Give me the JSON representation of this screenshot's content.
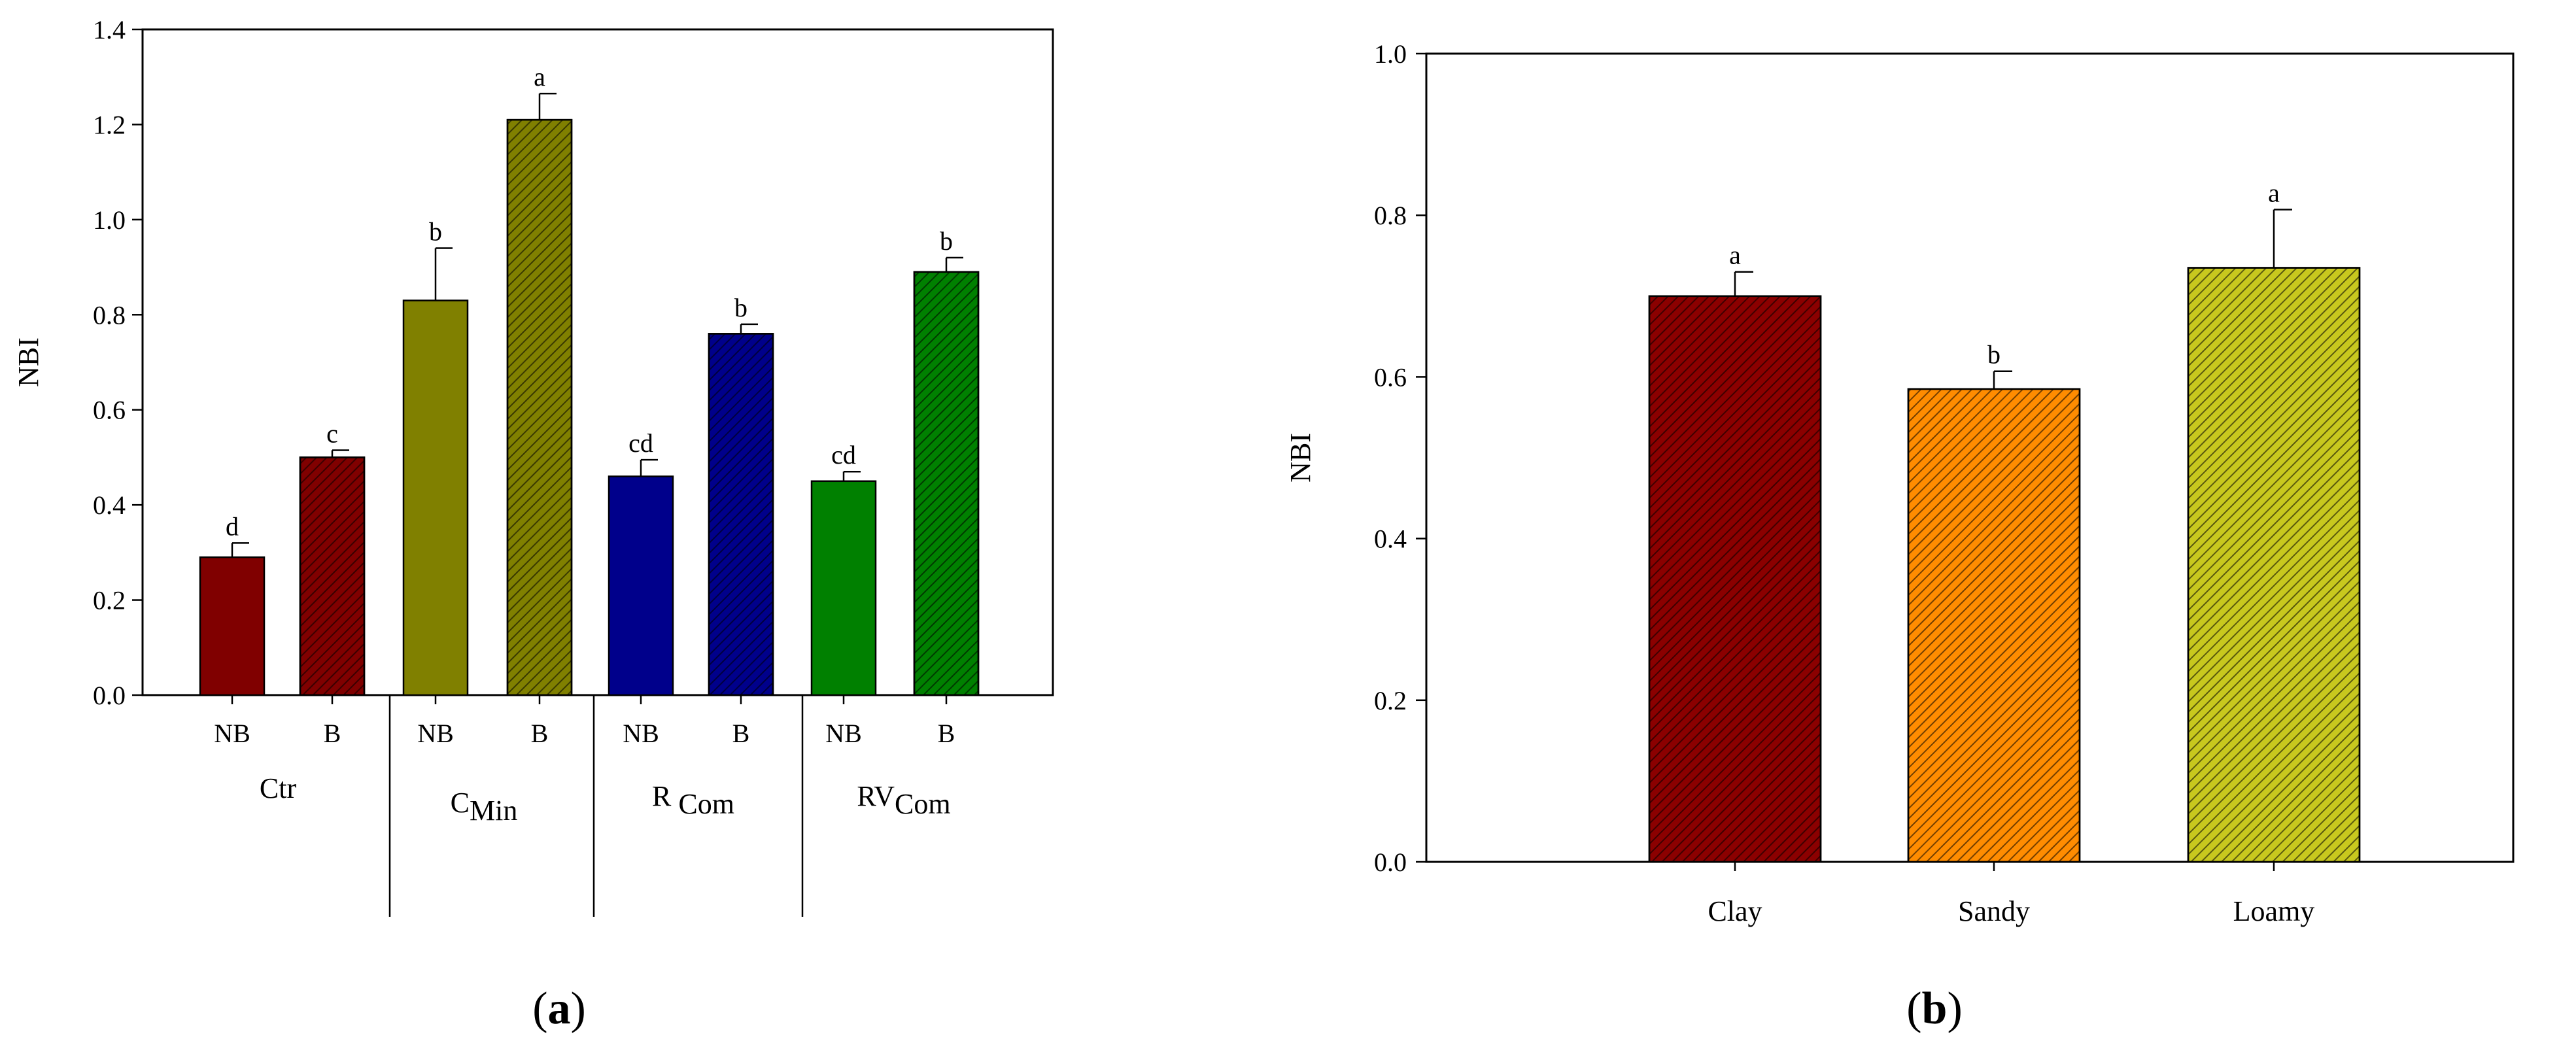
{
  "chart_data": [
    {
      "type": "bar",
      "panel_label": {
        "open": "(",
        "letter": "a",
        "close": ")"
      },
      "ylabel": "NBI",
      "ylim": [
        0,
        1.4
      ],
      "yticks": [
        "0.0",
        "0.2",
        "0.4",
        "0.6",
        "0.8",
        "1.0",
        "1.2",
        "1.4"
      ],
      "grid": false,
      "bars": [
        {
          "group": "Ctr",
          "label": "NB",
          "value": 0.29,
          "error": 0.03,
          "letter": "d",
          "color": "#800000",
          "hatched": false
        },
        {
          "group": "Ctr",
          "label": "B",
          "value": 0.5,
          "error": 0.015,
          "letter": "c",
          "color": "#800000",
          "hatched": true
        },
        {
          "group": "CMin",
          "label": "NB",
          "value": 0.83,
          "error": 0.11,
          "letter": "b",
          "color": "#808000",
          "hatched": false
        },
        {
          "group": "CMin",
          "label": "B",
          "value": 1.21,
          "error": 0.055,
          "letter": "a",
          "color": "#808000",
          "hatched": true
        },
        {
          "group": "RCom",
          "label": "NB",
          "value": 0.46,
          "error": 0.035,
          "letter": "cd",
          "color": "#00008b",
          "hatched": false
        },
        {
          "group": "RCom",
          "label": "B",
          "value": 0.76,
          "error": 0.02,
          "letter": "b",
          "color": "#00008b",
          "hatched": true
        },
        {
          "group": "RVCom",
          "label": "NB",
          "value": 0.45,
          "error": 0.02,
          "letter": "cd",
          "color": "#008000",
          "hatched": false
        },
        {
          "group": "RVCom",
          "label": "B",
          "value": 0.89,
          "error": 0.03,
          "letter": "b",
          "color": "#008000",
          "hatched": true
        }
      ],
      "groups": [
        {
          "main": "Ctr",
          "sub": ""
        },
        {
          "main": "C",
          "sub": "Min"
        },
        {
          "main": "R ",
          "sub": "Com"
        },
        {
          "main": "RV",
          "sub": "Com"
        }
      ]
    },
    {
      "type": "bar",
      "panel_label": {
        "open": "(",
        "letter": "b",
        "close": ")"
      },
      "ylabel": "NBI",
      "ylim": [
        0,
        1.0
      ],
      "yticks": [
        "0.0",
        "0.2",
        "0.4",
        "0.6",
        "0.8",
        "1.0"
      ],
      "grid": false,
      "categories": [
        "Clay",
        "Sandy",
        "Loamy"
      ],
      "values": [
        0.7,
        0.585,
        0.735
      ],
      "errors": [
        0.03,
        0.022,
        0.072
      ],
      "letters": [
        "a",
        "b",
        "a"
      ],
      "colors": [
        "#8b0000",
        "#ff8c00",
        "#c8c81e"
      ],
      "hatched": true
    }
  ]
}
